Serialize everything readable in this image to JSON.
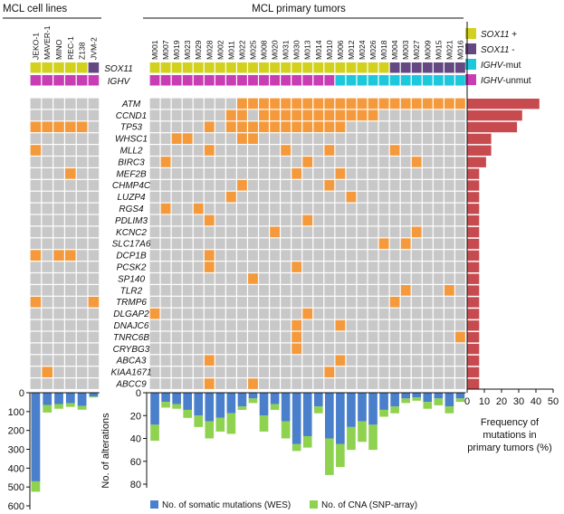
{
  "chart_data": {
    "type": "heatmap",
    "title_cell_lines": "MCL cell lines",
    "title_primary": "MCL primary tumors",
    "cell_lines": [
      "JEKO-1",
      "MAVER-1",
      "MINO",
      "REC-1",
      "Z138",
      "JVM-2"
    ],
    "primary_tumors": [
      "M001",
      "M007",
      "M019",
      "M023",
      "M029",
      "M028",
      "M002",
      "M011",
      "M022",
      "M025",
      "M008",
      "M020",
      "M031",
      "M030",
      "M013",
      "M014",
      "M010",
      "M006",
      "M012",
      "M024",
      "M026",
      "M018",
      "M004",
      "M003",
      "M027",
      "M009",
      "M015",
      "M021",
      "M016"
    ],
    "annotation_rows": [
      "SOX11",
      "IGHV"
    ],
    "sox11_status": {
      "cell_lines": [
        "+",
        "+",
        "+",
        "+",
        "+",
        "-"
      ],
      "primary": [
        "+",
        "+",
        "+",
        "+",
        "+",
        "+",
        "+",
        "+",
        "+",
        "+",
        "+",
        "+",
        "+",
        "+",
        "+",
        "+",
        "+",
        "+",
        "+",
        "+",
        "+",
        "+",
        "-",
        "-",
        "-",
        "-",
        "-",
        "-",
        "-"
      ]
    },
    "ighv_status": {
      "cell_lines": [
        "unmut",
        "unmut",
        "unmut",
        "unmut",
        "unmut",
        "unmut"
      ],
      "primary": [
        "unmut",
        "unmut",
        "unmut",
        "unmut",
        "unmut",
        "unmut",
        "unmut",
        "unmut",
        "unmut",
        "unmut",
        "unmut",
        "unmut",
        "unmut",
        "unmut",
        "unmut",
        "unmut",
        "unmut",
        "mut",
        "mut",
        "mut",
        "mut",
        "mut",
        "mut",
        "mut",
        "mut",
        "mut",
        "mut",
        "mut",
        "mut"
      ]
    },
    "legend": [
      {
        "label": "SOX11 +",
        "color": "#d2d21e"
      },
      {
        "label": "SOX11 -",
        "color": "#644882"
      },
      {
        "label": "IGHV-mut",
        "color": "#1ec8dc"
      },
      {
        "label": "IGHV-unmut",
        "color": "#c83cb4"
      }
    ],
    "genes": [
      "ATM",
      "CCND1",
      "TP53",
      "WHSC1",
      "MLL2",
      "BIRC3",
      "MEF2B",
      "CHMP4C",
      "LUZP4",
      "RGS4",
      "PDLIM3",
      "KCNC2",
      "SLC17A6",
      "DCP1B",
      "PCSK2",
      "SP140",
      "TLR2",
      "TRMP6",
      "DLGAP2",
      "DNAJC6",
      "TNRC6B",
      "CRYBG3",
      "ABCA3",
      "KIAA1671",
      "ABCC9"
    ],
    "mutations_cell_lines": {
      "TP53": [
        "JEKO-1",
        "MAVER-1",
        "MINO",
        "REC-1",
        "Z138"
      ],
      "MLL2": [
        "JEKO-1"
      ],
      "MEF2B": [
        "REC-1"
      ],
      "DCP1B": [
        "JEKO-1",
        "MINO",
        "REC-1"
      ],
      "TRMP6": [
        "JEKO-1",
        "JVM-2"
      ],
      "KIAA1671": [
        "MAVER-1"
      ]
    },
    "mutations_primary": {
      "ATM": [
        "M022",
        "M025",
        "M008",
        "M020",
        "M031",
        "M030",
        "M013",
        "M014",
        "M010",
        "M006",
        "M012",
        "M024",
        "M026",
        "M018",
        "M004",
        "M003",
        "M027",
        "M009",
        "M015",
        "M021",
        "M016"
      ],
      "CCND1": [
        "M011",
        "M022",
        "M008",
        "M020",
        "M031",
        "M030",
        "M013",
        "M014",
        "M010",
        "M006",
        "M012",
        "M024",
        "M026"
      ],
      "TP53": [
        "M028",
        "M011",
        "M022",
        "M025",
        "M008",
        "M020",
        "M031",
        "M030",
        "M013",
        "M014",
        "M010",
        "M006"
      ],
      "WHSC1": [
        "M019",
        "M023",
        "M022",
        "M025"
      ],
      "MLL2": [
        "M028",
        "M031",
        "M010",
        "M004"
      ],
      "BIRC3": [
        "M007",
        "M013",
        "M027"
      ],
      "MEF2B": [
        "M030",
        "M006"
      ],
      "CHMP4C": [
        "M022",
        "M010"
      ],
      "LUZP4": [
        "M011",
        "M012"
      ],
      "RGS4": [
        "M007",
        "M029"
      ],
      "PDLIM3": [
        "M028",
        "M013"
      ],
      "KCNC2": [
        "M020",
        "M027"
      ],
      "SLC17A6": [
        "M018",
        "M003"
      ],
      "DCP1B": [
        "M028"
      ],
      "PCSK2": [
        "M028",
        "M030"
      ],
      "SP140": [
        "M025"
      ],
      "TLR2": [
        "M003",
        "M021"
      ],
      "TRMP6": [
        "M004"
      ],
      "DLGAP2": [
        "M001",
        "M013"
      ],
      "DNAJC6": [
        "M030",
        "M006"
      ],
      "TNRC6B": [
        "M030",
        "M016"
      ],
      "CRYBG3": [
        "M030"
      ],
      "ABCA3": [
        "M028",
        "M006"
      ],
      "KIAA1671": [
        "M010"
      ],
      "ABCC9": [
        "M028",
        "M025"
      ]
    },
    "mutation_frequency": {
      "xlabel": "Frequency of mutations in primary tumors (%)",
      "xticks": [
        0,
        10,
        20,
        30,
        40,
        50
      ],
      "xlim": [
        0,
        50
      ],
      "values": [
        42,
        32,
        29,
        14,
        14,
        11,
        7,
        7,
        7,
        7,
        7,
        7,
        7,
        7,
        7,
        7,
        7,
        7,
        7,
        7,
        7,
        7,
        7,
        7,
        7
      ]
    },
    "cell_line_bars": {
      "yticks": [
        0,
        100,
        200,
        300,
        400,
        500,
        600
      ],
      "ylim": [
        0,
        600
      ],
      "somatic": [
        470,
        65,
        60,
        55,
        70,
        20
      ],
      "cna": [
        55,
        40,
        25,
        20,
        20,
        5
      ]
    },
    "primary_bars": {
      "ylabel": "No. of alterations",
      "yticks": [
        0,
        20,
        40,
        60,
        80
      ],
      "ylim": [
        0,
        80
      ],
      "somatic": [
        28,
        8,
        10,
        15,
        20,
        25,
        22,
        18,
        12,
        5,
        20,
        10,
        25,
        45,
        38,
        12,
        40,
        45,
        30,
        25,
        28,
        15,
        12,
        5,
        4,
        8,
        5,
        12,
        5
      ],
      "cna": [
        14,
        5,
        4,
        7,
        10,
        15,
        12,
        18,
        3,
        4,
        14,
        5,
        15,
        6,
        10,
        6,
        32,
        20,
        20,
        18,
        22,
        6,
        6,
        4,
        3,
        6,
        6,
        6,
        3
      ]
    },
    "legend_bottom": [
      {
        "label": "No. of somatic mutations (WES)",
        "color": "#4a7fcc"
      },
      {
        "label": "No. of CNA (SNP-array)",
        "color": "#8fd24f"
      }
    ],
    "colors": {
      "mutated": "#f59a3c",
      "wildtype": "#c8c8c8",
      "freq_bar": "#c74a4f"
    }
  }
}
